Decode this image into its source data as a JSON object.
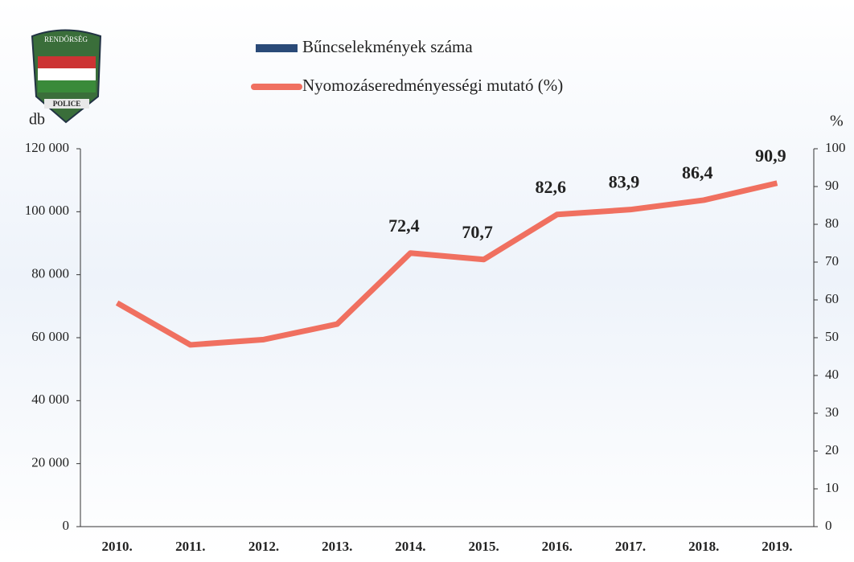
{
  "chart_data": {
    "type": "line",
    "categories": [
      "2010.",
      "2011.",
      "2012.",
      "2013.",
      "2014.",
      "2015.",
      "2016.",
      "2017.",
      "2018.",
      "2019."
    ],
    "y_axis_label": "db",
    "y2_axis_label": "%",
    "ylim": [
      0,
      120000
    ],
    "yticks": [
      {
        "value": 0,
        "label": "0"
      },
      {
        "value": 20000,
        "label": "20 000"
      },
      {
        "value": 40000,
        "label": "40 000"
      },
      {
        "value": 60000,
        "label": "60 000"
      },
      {
        "value": 80000,
        "label": "80 000"
      },
      {
        "value": 100000,
        "label": "100 000"
      },
      {
        "value": 120000,
        "label": "120 000"
      }
    ],
    "y2lim": [
      0,
      100
    ],
    "y2ticks": [
      0,
      10,
      20,
      30,
      40,
      50,
      60,
      70,
      80,
      90,
      100
    ],
    "logo_text": [
      "RENDŐRSÉG",
      "POLICE"
    ],
    "series": [
      {
        "name": "Bűncselekmények száma",
        "color": "#2a4a78",
        "type": "bar",
        "values": [
          null,
          null,
          null,
          null,
          null,
          null,
          null,
          null,
          null,
          null
        ]
      },
      {
        "name": "Nyomozáseredményességi mutató (%)",
        "color": "#f07060",
        "type": "line",
        "axis": "y2",
        "values": [
          59.2,
          48.1,
          49.5,
          53.6,
          72.4,
          70.7,
          82.6,
          83.9,
          86.4,
          90.9
        ],
        "value_labels": [
          null,
          null,
          null,
          null,
          "72,4",
          "70,7",
          "82,6",
          "83,9",
          "86,4",
          "90,9"
        ]
      }
    ]
  }
}
